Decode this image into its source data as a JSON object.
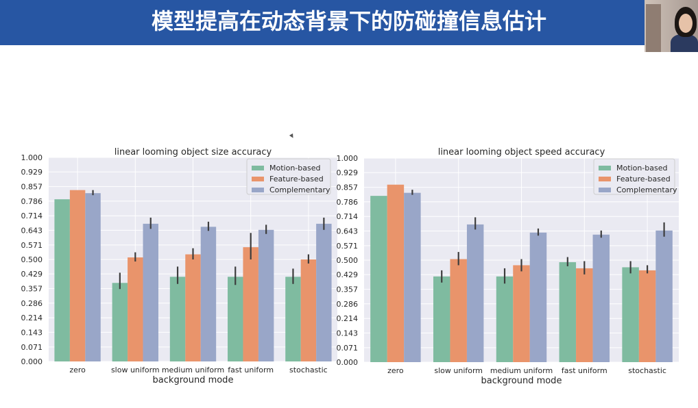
{
  "slide": {
    "title": "模型提高在动态背景下的防碰撞信息估计",
    "colors": {
      "title_bar": "#2756a3",
      "title_text": "#ffffff"
    }
  },
  "chart_data": [
    {
      "type": "bar",
      "title": "linear looming object size accuracy",
      "xlabel": "background mode",
      "ylabel": "",
      "categories": [
        "zero",
        "slow uniform",
        "medium uniform",
        "fast uniform",
        "stochastic"
      ],
      "ylim": [
        0,
        1.0
      ],
      "yticks": [
        "0.000",
        "0.071",
        "0.143",
        "0.214",
        "0.286",
        "0.357",
        "0.429",
        "0.500",
        "0.571",
        "0.643",
        "0.714",
        "0.786",
        "0.857",
        "0.929",
        "1.000"
      ],
      "grid": true,
      "legend_position": "top-right",
      "series": [
        {
          "name": "Motion-based",
          "color": "#7fbba0",
          "values": [
            0.795,
            0.385,
            0.415,
            0.415,
            0.415
          ],
          "error": [
            [
              0.795,
              0.795
            ],
            [
              0.355,
              0.435
            ],
            [
              0.38,
              0.465
            ],
            [
              0.375,
              0.465
            ],
            [
              0.38,
              0.455
            ]
          ]
        },
        {
          "name": "Feature-based",
          "color": "#e9946b",
          "values": [
            0.84,
            0.51,
            0.525,
            0.56,
            0.5
          ],
          "error": [
            [
              0.84,
              0.84
            ],
            [
              0.49,
              0.535
            ],
            [
              0.5,
              0.555
            ],
            [
              0.5,
              0.63
            ],
            [
              0.48,
              0.525
            ]
          ]
        },
        {
          "name": "Complementary",
          "color": "#99a6c8",
          "values": [
            0.825,
            0.675,
            0.66,
            0.645,
            0.675
          ],
          "error": [
            [
              0.815,
              0.84
            ],
            [
              0.65,
              0.705
            ],
            [
              0.64,
              0.685
            ],
            [
              0.625,
              0.67
            ],
            [
              0.645,
              0.705
            ]
          ]
        }
      ]
    },
    {
      "type": "bar",
      "title": "linear looming object speed accuracy",
      "xlabel": "background mode",
      "ylabel": "",
      "categories": [
        "zero",
        "slow uniform",
        "medium uniform",
        "fast uniform",
        "stochastic"
      ],
      "ylim": [
        0,
        1.0
      ],
      "yticks": [
        "0.000",
        "0.071",
        "0.143",
        "0.214",
        "0.286",
        "0.357",
        "0.429",
        "0.500",
        "0.571",
        "0.643",
        "0.714",
        "0.786",
        "0.857",
        "0.929",
        "1.000"
      ],
      "grid": true,
      "legend_position": "top-right",
      "series": [
        {
          "name": "Motion-based",
          "color": "#7fbba0",
          "values": [
            0.815,
            0.42,
            0.42,
            0.49,
            0.465
          ],
          "error": [
            [
              0.815,
              0.815
            ],
            [
              0.39,
              0.45
            ],
            [
              0.385,
              0.46
            ],
            [
              0.47,
              0.515
            ],
            [
              0.435,
              0.495
            ]
          ]
        },
        {
          "name": "Feature-based",
          "color": "#e9946b",
          "values": [
            0.87,
            0.505,
            0.475,
            0.46,
            0.45
          ],
          "error": [
            [
              0.87,
              0.87
            ],
            [
              0.475,
              0.54
            ],
            [
              0.445,
              0.505
            ],
            [
              0.43,
              0.495
            ],
            [
              0.435,
              0.475
            ]
          ]
        },
        {
          "name": "Complementary",
          "color": "#99a6c8",
          "values": [
            0.83,
            0.675,
            0.635,
            0.625,
            0.645
          ],
          "error": [
            [
              0.82,
              0.845
            ],
            [
              0.65,
              0.71
            ],
            [
              0.62,
              0.655
            ],
            [
              0.61,
              0.645
            ],
            [
              0.615,
              0.685
            ]
          ]
        }
      ]
    }
  ]
}
